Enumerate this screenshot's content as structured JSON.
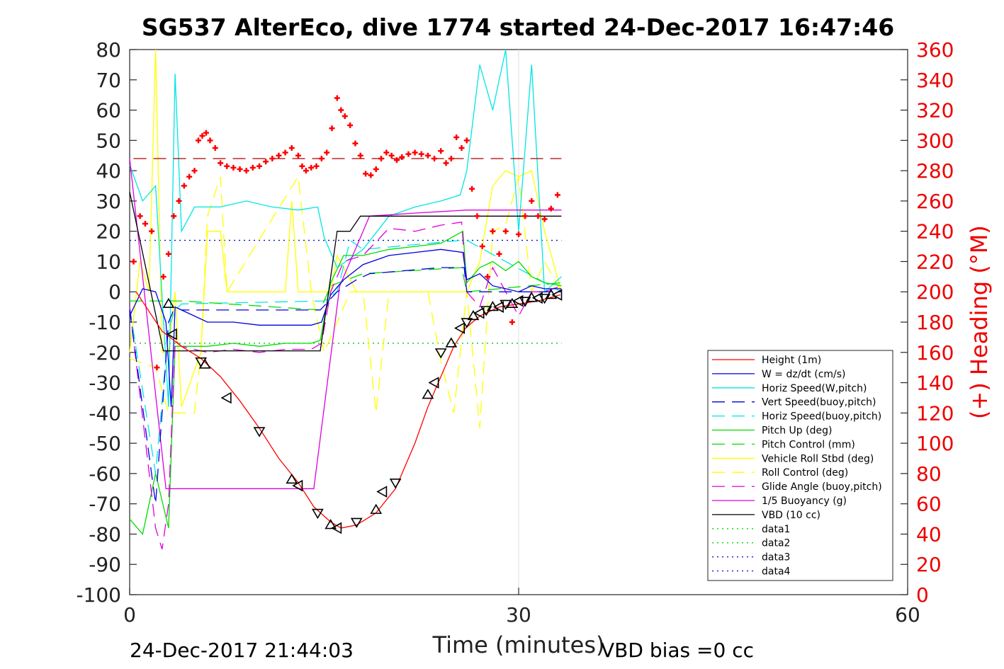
{
  "chart_data": {
    "type": "line",
    "title": "SG537 AlterEco, dive 1774 started 24-Dec-2017 16:47:46",
    "xlabel": "Time (minutes)",
    "ylabel_right": "(+) Heading (°M)",
    "xlim": [
      0,
      60
    ],
    "ylim": [
      -100,
      80
    ],
    "ylim_right": [
      0,
      360
    ],
    "x_ticks": [
      "0",
      "30",
      "60"
    ],
    "y_ticks": [
      "80",
      "70",
      "60",
      "50",
      "40",
      "30",
      "20",
      "10",
      "0",
      "-10",
      "-20",
      "-30",
      "-40",
      "-50",
      "-60",
      "-70",
      "-80",
      "-90",
      "-100"
    ],
    "y_right_ticks": [
      "360",
      "340",
      "320",
      "300",
      "280",
      "260",
      "240",
      "220",
      "200",
      "180",
      "160",
      "140",
      "120",
      "100",
      "80",
      "60",
      "40",
      "20",
      "0"
    ],
    "footer_left": "24-Dec-2017 21:44:03",
    "footer_right": "VBD bias =0 cc",
    "grid": "x at 30",
    "legend_position": "lower-right",
    "legend": [
      {
        "label": "Height (1m)",
        "color": "#ff0000",
        "style": "solid"
      },
      {
        "label": "W = dz/dt (cm/s)",
        "color": "#0000dd",
        "style": "solid"
      },
      {
        "label": "Horiz Speed(W,pitch)",
        "color": "#00e5e5",
        "style": "solid"
      },
      {
        "label": "Vert Speed(buoy,pitch)",
        "color": "#0000dd",
        "style": "dashed"
      },
      {
        "label": "Horiz Speed(buoy,pitch)",
        "color": "#00e5e5",
        "style": "dashed"
      },
      {
        "label": "Pitch Up (deg)",
        "color": "#00dd00",
        "style": "solid"
      },
      {
        "label": "Pitch Control (mm)",
        "color": "#00dd00",
        "style": "dashed"
      },
      {
        "label": "Vehicle Roll Stbd (deg)",
        "color": "#ffff00",
        "style": "solid"
      },
      {
        "label": "Roll Control (deg)",
        "color": "#ffff00",
        "style": "dashed"
      },
      {
        "label": "Glide Angle (buoy,pitch)",
        "color": "#dd00dd",
        "style": "dashed"
      },
      {
        "label": "1/5 Buoyancy (g)",
        "color": "#dd00dd",
        "style": "solid"
      },
      {
        "label": "VBD (10 cc)",
        "color": "#000000",
        "style": "solid"
      },
      {
        "label": "data1",
        "color": "#00dd00",
        "style": "dotted"
      },
      {
        "label": "data2",
        "color": "#00dd00",
        "style": "dotted"
      },
      {
        "label": "data3",
        "color": "#0000dd",
        "style": "dotted"
      },
      {
        "label": "data4",
        "color": "#0000dd",
        "style": "dotted"
      }
    ],
    "series": [
      {
        "name": "Height (1m)",
        "x": [
          0.5,
          2.5,
          4,
          5.5,
          7,
          8.5,
          10,
          11.5,
          13,
          14.2,
          15.5,
          16.3,
          17.5,
          19,
          20.5,
          22,
          23,
          24,
          25,
          25.9,
          27,
          28.5,
          30,
          31.5,
          33.2
        ],
        "y": [
          0,
          -13,
          -18,
          -22,
          -28,
          -36,
          -45,
          -55,
          -63,
          -71,
          -76,
          -78,
          -77,
          -73,
          -65,
          -50,
          -38,
          -28,
          -18,
          -12,
          -8,
          -5,
          -4,
          -3,
          -1
        ]
      },
      {
        "name": "W = dz/dt (cm/s)",
        "x": [
          0,
          1,
          2,
          2.8,
          3.2,
          3.5,
          4,
          6,
          8,
          10,
          12,
          14,
          14.8,
          15.5,
          16.5,
          18,
          20,
          22,
          24,
          25.7,
          26,
          27,
          28,
          29,
          30,
          31,
          32,
          33.3
        ],
        "y": [
          -8,
          1,
          0,
          -10,
          -38,
          -5,
          -6,
          -10,
          -10,
          -11,
          -11,
          -11,
          -10,
          -1,
          4,
          9,
          12,
          13,
          14,
          13,
          4,
          6,
          2,
          1,
          0,
          2,
          1,
          1
        ]
      },
      {
        "name": "Horiz Speed(W,pitch)",
        "x": [
          0,
          1,
          2,
          3,
          3.5,
          4,
          5,
          7,
          9,
          11,
          13,
          14.5,
          15,
          16,
          18,
          20,
          22,
          24,
          25.5,
          26,
          27,
          28,
          29,
          30,
          31,
          32,
          33.3
        ],
        "y": [
          42,
          30,
          35,
          -38,
          72,
          20,
          28,
          28,
          30,
          28,
          27,
          28,
          18,
          8,
          14,
          25,
          28,
          30,
          32,
          40,
          75,
          60,
          80,
          20,
          75,
          0,
          5
        ]
      },
      {
        "name": "Vert Speed(buoy,pitch)",
        "x": [
          0,
          2,
          3,
          3.5,
          4,
          14.7,
          16,
          17.5,
          18.5,
          24,
          25.8,
          26,
          33.3
        ],
        "y": [
          -6,
          -70,
          -10,
          -5,
          -6,
          -6,
          0,
          4,
          6,
          8,
          8,
          0,
          0
        ]
      },
      {
        "name": "Horiz Speed(buoy,pitch)",
        "x": [
          0,
          2,
          3,
          3.5,
          4,
          15,
          16,
          17,
          18,
          25.6,
          26,
          33.3
        ],
        "y": [
          -5,
          -60,
          -12,
          -6,
          -4,
          -3,
          0,
          17,
          14,
          17,
          17,
          0
        ]
      },
      {
        "name": "Pitch Up (deg)",
        "x": [
          0,
          1,
          2,
          3,
          3.5,
          4,
          6,
          8,
          10,
          12,
          14,
          14.7,
          15.5,
          16.5,
          18,
          20,
          22,
          24,
          25.7,
          26,
          27,
          28,
          29,
          30,
          31,
          32,
          33.3
        ],
        "y": [
          -75,
          -80,
          -60,
          -78,
          -18,
          -18,
          -18,
          -17,
          -18,
          -17,
          -17,
          -16,
          3,
          12,
          12,
          14,
          15,
          16,
          20,
          3,
          8,
          10,
          7,
          10,
          5,
          3,
          2
        ]
      },
      {
        "name": "Pitch Control (mm)",
        "x": [
          0,
          3.5,
          4,
          14.7,
          15.5,
          18,
          25.6,
          26,
          33.3
        ],
        "y": [
          -3,
          -3,
          -3,
          -6,
          2,
          6,
          8,
          0,
          3
        ]
      },
      {
        "name": "Vehicle Roll Stbd (deg)",
        "x": [
          0,
          0.8,
          1.5,
          2,
          2.5,
          3,
          3.5,
          4,
          5.5,
          6,
          7,
          7.5,
          8,
          10,
          12,
          12.5,
          13,
          14,
          15,
          15.5,
          16,
          17.5,
          18,
          22,
          23,
          24,
          25,
          26,
          27,
          28,
          29,
          30,
          31,
          32,
          33.3
        ],
        "y": [
          -20,
          10,
          0,
          80,
          -20,
          -20,
          0,
          -38,
          -20,
          20,
          20,
          0,
          0,
          0,
          0,
          30,
          0,
          0,
          0,
          0,
          12,
          0,
          0,
          0,
          0,
          0,
          0,
          0,
          10,
          35,
          40,
          38,
          40,
          20,
          0
        ]
      },
      {
        "name": "Roll Control (deg)",
        "x": [
          0,
          2,
          3,
          3.5,
          4,
          5,
          5.5,
          6,
          7,
          7.5,
          13,
          14,
          15,
          17,
          18,
          19,
          20,
          21,
          23,
          24,
          25,
          26,
          27,
          28,
          29,
          30,
          31,
          32,
          33.3
        ],
        "y": [
          -22,
          -25,
          -40,
          -40,
          -40,
          -40,
          -20,
          25,
          38,
          0,
          38,
          0,
          -20,
          0,
          0,
          -40,
          0,
          0,
          0,
          -23,
          -40,
          0,
          -45,
          20,
          22,
          38,
          0,
          10,
          0
        ]
      },
      {
        "name": "Glide Angle (buoy,pitch)",
        "x": [
          0,
          2,
          2.5,
          3,
          3.5,
          4,
          6,
          8,
          10,
          12,
          14,
          14.8,
          15.5,
          16.5,
          18,
          20,
          22,
          24,
          25.6,
          26,
          27,
          28,
          29,
          30,
          31,
          32,
          33.3
        ],
        "y": [
          -5,
          -78,
          -85,
          -70,
          -16,
          -18,
          -20,
          -19,
          -20,
          -19,
          -19,
          -17,
          0,
          10,
          12,
          21,
          20,
          22,
          23,
          0,
          -5,
          8,
          0,
          -8,
          0,
          0,
          2
        ]
      },
      {
        "name": "1/5 Buoyancy (g)",
        "x": [
          0,
          2.8,
          4,
          8,
          12,
          14.2,
          16.2,
          17.5,
          18.5,
          22,
          26,
          30,
          33.3
        ],
        "y": [
          44,
          -65,
          -65,
          -65,
          -65,
          -65,
          2,
          15,
          25,
          26,
          27,
          27,
          27
        ]
      },
      {
        "name": "VBD (10 cc)",
        "x": [
          0,
          2.6,
          4,
          8,
          12,
          14.7,
          16,
          17,
          17.8,
          18.4,
          22,
          26,
          30,
          33.3
        ],
        "y": [
          33,
          -19.5,
          -19.5,
          -19.5,
          -19.5,
          -19.5,
          20,
          20,
          25,
          25,
          25,
          25,
          25,
          25
        ]
      },
      {
        "name": "data1",
        "x": [
          0,
          33.3
        ],
        "y": [
          -17,
          -17
        ]
      },
      {
        "name": "data2",
        "x": [
          0,
          33.3
        ],
        "y": [
          17,
          17
        ]
      },
      {
        "name": "data3",
        "x": [
          0,
          33.3
        ],
        "y": [
          -17,
          -17
        ]
      },
      {
        "name": "data4",
        "x": [
          0,
          33.3
        ],
        "y": [
          17,
          17
        ]
      }
    ],
    "heading_points": {
      "x": [
        0.3,
        0.8,
        1.2,
        1.7,
        2.1,
        2.6,
        3.0,
        3.4,
        3.8,
        4.2,
        4.6,
        5.0,
        5.3,
        5.6,
        5.9,
        6.2,
        6.6,
        7.0,
        7.5,
        8.0,
        8.5,
        9.0,
        9.5,
        10,
        10.5,
        11,
        11.5,
        12,
        12.5,
        13,
        13.3,
        13.6,
        14,
        14.4,
        14.8,
        15.2,
        15.6,
        16,
        16.3,
        16.6,
        17,
        17.4,
        17.8,
        18.2,
        18.6,
        19,
        19.4,
        19.8,
        20.2,
        20.6,
        21,
        21.5,
        22,
        22.5,
        23,
        23.5,
        24,
        24.4,
        24.8,
        25.2,
        25.6,
        26,
        26.4,
        26.8,
        27.2,
        27.6,
        28,
        28.5,
        29,
        29.5,
        30,
        30.5,
        31,
        31.5,
        32,
        32.5,
        33.0
      ],
      "y": [
        220,
        250,
        245,
        240,
        150,
        210,
        225,
        250,
        260,
        270,
        276,
        280,
        300,
        303,
        305,
        300,
        295,
        285,
        283,
        282,
        281,
        280,
        282,
        283,
        286,
        288,
        290,
        292,
        295,
        290,
        283,
        280,
        282,
        283,
        288,
        292,
        308,
        328,
        320,
        316,
        310,
        298,
        290,
        278,
        277,
        281,
        288,
        292,
        290,
        287,
        289,
        291,
        292,
        291,
        290,
        288,
        293,
        285,
        288,
        302,
        295,
        300,
        268,
        250,
        230,
        210,
        240,
        225,
        240,
        180,
        238,
        250,
        260,
        250,
        248,
        255,
        264
      ]
    },
    "heading_ref_y": 288,
    "markers": {
      "x": [
        3.0,
        3.3,
        5.5,
        5.8,
        7.5,
        10,
        12.5,
        13,
        14.5,
        15.5,
        16,
        17.5,
        19,
        19.5,
        20.5,
        23,
        23.5,
        24,
        24.8,
        25.5,
        26,
        26.5,
        27,
        27.5,
        28,
        28.5,
        29,
        29.5,
        30,
        30.5,
        31,
        31.5,
        32,
        32.5,
        33
      ],
      "y": [
        -4,
        -14,
        -23,
        -24,
        -35,
        -46,
        -62,
        -64,
        -73,
        -77,
        -78,
        -76,
        -72,
        -66,
        -63,
        -34,
        -30,
        -20,
        -17,
        -12,
        -10,
        -8,
        -7,
        -6,
        -5,
        -5,
        -4,
        -4,
        -3,
        -3,
        -2,
        -2,
        -2,
        -1,
        -1
      ]
    }
  }
}
